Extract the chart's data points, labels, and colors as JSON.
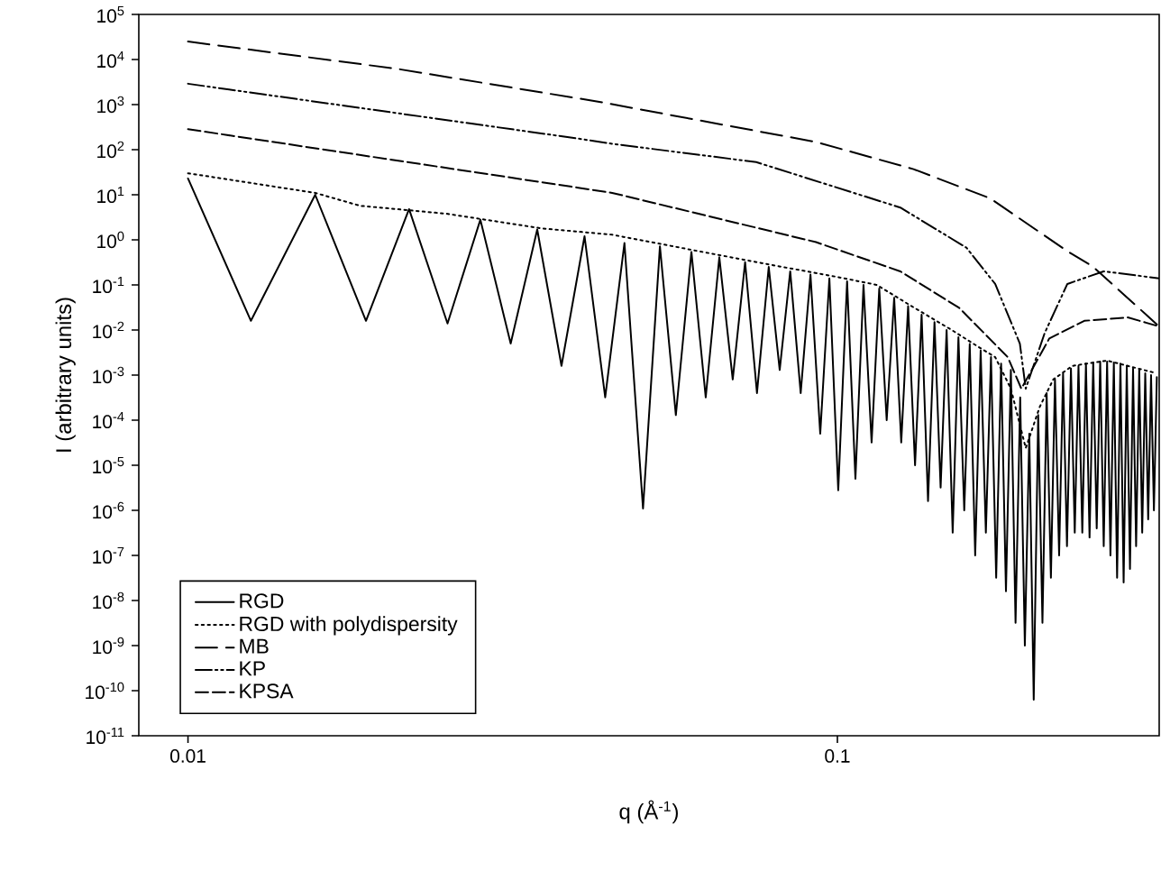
{
  "chart_data": {
    "type": "line",
    "xlabel": "q (Å$^{-1}$)",
    "ylabel": "I (arbitrary units)",
    "log": "xy",
    "grid": false,
    "legend": "bottom left",
    "marker": "none",
    "xlim": [
      0.0084,
      0.313
    ],
    "ylim": [
      1e-11,
      100000.0
    ],
    "xticks": [
      0.01,
      0.1
    ],
    "yticks": [
      {
        "value": 1e-11,
        "label": "10$^{-11}$"
      },
      {
        "value": 1e-10,
        "label": "10$^{-10}$"
      },
      {
        "value": 1e-09,
        "label": "10$^{-9}$"
      },
      {
        "value": 1e-08,
        "label": "10$^{-8}$"
      },
      {
        "value": 1e-07,
        "label": "10$^{-7}$"
      },
      {
        "value": 1e-06,
        "label": "10$^{-6}$"
      },
      {
        "value": 1e-05,
        "label": "10$^{-5}$"
      },
      {
        "value": 0.0001,
        "label": "10$^{-4}$"
      },
      {
        "value": 0.001,
        "label": "10$^{-3}$"
      },
      {
        "value": 0.01,
        "label": "10$^{-2}$"
      },
      {
        "value": 0.1,
        "label": "10$^{-1}$"
      },
      {
        "value": 1,
        "label": "10$^{0}$"
      },
      {
        "value": 10,
        "label": "10$^{1}$"
      },
      {
        "value": 100,
        "label": "10$^{2}$"
      },
      {
        "value": 1000,
        "label": "10$^{3}$"
      },
      {
        "value": 10000,
        "label": "10$^{4}$"
      },
      {
        "value": 100000,
        "label": "10$^{5}$"
      }
    ],
    "series": [
      {
        "name": "RGD",
        "color": "#000000",
        "line_style": "solid",
        "x": [
          0.01,
          0.0125,
          0.0157,
          0.0188,
          0.0219,
          0.0251,
          0.0282,
          0.0314,
          0.0345,
          0.0376,
          0.0408,
          0.0439,
          0.047,
          0.0502,
          0.0533,
          0.0564,
          0.0596,
          0.0627,
          0.0658,
          0.069,
          0.0721,
          0.0752,
          0.0784,
          0.0815,
          0.0846,
          0.0878,
          0.0909,
          0.0941,
          0.0972,
          0.1003,
          0.1035,
          0.1066,
          0.1097,
          0.1129,
          0.116,
          0.1191,
          0.1223,
          0.1254,
          0.1285,
          0.1317,
          0.1348,
          0.1379,
          0.1411,
          0.1442,
          0.1473,
          0.1505,
          0.1536,
          0.1568,
          0.1599,
          0.163,
          0.1662,
          0.1693,
          0.1724,
          0.1756,
          0.1787,
          0.1818,
          0.185,
          0.1881,
          0.1912,
          0.1944,
          0.1975,
          0.2006,
          0.2038,
          0.2069,
          0.21,
          0.2132,
          0.2163,
          0.2195,
          0.2226,
          0.2257,
          0.2289,
          0.232,
          0.2351,
          0.2383,
          0.2414,
          0.2445,
          0.2477,
          0.2508,
          0.2539,
          0.2571,
          0.2602,
          0.2633,
          0.2665,
          0.2696,
          0.2728,
          0.2759,
          0.279,
          0.2822,
          0.2853,
          0.2884,
          0.2916,
          0.2947,
          0.2979,
          0.301,
          0.3041,
          0.3072,
          0.3104
        ],
        "values": [
          23,
          0.016,
          10,
          0.016,
          4.8,
          0.014,
          2.8,
          0.005,
          1.7,
          0.0016,
          1.2,
          0.00032,
          0.85,
          1.1e-06,
          0.72,
          0.00013,
          0.54,
          0.00032,
          0.41,
          0.0008,
          0.32,
          0.0004,
          0.25,
          0.0013,
          0.2,
          0.0004,
          0.17,
          5e-05,
          0.14,
          2.8e-06,
          0.12,
          5e-06,
          0.1,
          3.2e-05,
          0.083,
          0.0001,
          0.052,
          3.2e-05,
          0.034,
          1e-05,
          0.022,
          1.6e-06,
          0.015,
          3.2e-06,
          0.01,
          3.2e-07,
          0.0069,
          1e-06,
          0.0049,
          1e-07,
          0.0035,
          3.2e-07,
          0.0025,
          3.2e-08,
          0.0018,
          1.6e-08,
          0.0013,
          3.2e-09,
          0.00032,
          1e-09,
          5e-05,
          6.3e-11,
          0.00013,
          3.2e-09,
          0.0004,
          3.2e-08,
          0.0008,
          1e-07,
          0.0011,
          1.6e-07,
          0.0014,
          3.2e-07,
          0.0016,
          3.2e-07,
          0.0018,
          2.5e-07,
          0.0019,
          4e-07,
          0.002,
          1.6e-07,
          0.002,
          1e-07,
          0.0019,
          3.2e-08,
          0.0018,
          2.5e-08,
          0.0016,
          5e-08,
          0.0014,
          1.6e-07,
          0.0013,
          3.2e-07,
          0.0011,
          6.3e-07,
          0.001,
          1e-06,
          0.0009
        ]
      },
      {
        "name": "RGD with polydispersity",
        "color": "#000000",
        "line_style": "dotted",
        "x": [
          0.01,
          0.0157,
          0.0184,
          0.025,
          0.035,
          0.045,
          0.06,
          0.08,
          0.1,
          0.115,
          0.13,
          0.15,
          0.165,
          0.175,
          0.185,
          0.195,
          0.205,
          0.215,
          0.23,
          0.26,
          0.31
        ],
        "values": [
          30,
          11,
          5.7,
          3.8,
          1.8,
          1.3,
          0.59,
          0.27,
          0.15,
          0.1,
          0.034,
          0.01,
          0.0042,
          0.0025,
          0.0005,
          2.4e-05,
          0.0002,
          0.0008,
          0.0016,
          0.0021,
          0.0011
        ]
      },
      {
        "name": "MB",
        "color": "#000000",
        "line_style": "loosely dashed",
        "x": [
          0.01,
          0.021,
          0.043,
          0.0927,
          0.131,
          0.172,
          0.226,
          0.247,
          0.313
        ],
        "values": [
          25000,
          6200,
          1150,
          148,
          37,
          8.3,
          0.56,
          0.26,
          0.012
        ]
      },
      {
        "name": "KP",
        "color": "#000000",
        "line_style": "dashdotdotted",
        "x": [
          0.01,
          0.0397,
          0.045,
          0.075,
          0.125,
          0.158,
          0.175,
          0.191,
          0.195,
          0.2085,
          0.226,
          0.257,
          0.313
        ],
        "values": [
          2900,
          178,
          135,
          53,
          5.2,
          0.67,
          0.105,
          0.005,
          0.0005,
          0.0085,
          0.105,
          0.2,
          0.14
        ]
      },
      {
        "name": "KPSA",
        "color": "#000000",
        "line_style": "dashed",
        "x": [
          0.01,
          0.0397,
          0.045,
          0.0927,
          0.125,
          0.154,
          0.183,
          0.192,
          0.212,
          0.24,
          0.28,
          0.313
        ],
        "values": [
          285,
          14.5,
          11,
          0.89,
          0.2,
          0.031,
          0.0025,
          0.0005,
          0.0065,
          0.016,
          0.019,
          0.012
        ]
      }
    ]
  }
}
